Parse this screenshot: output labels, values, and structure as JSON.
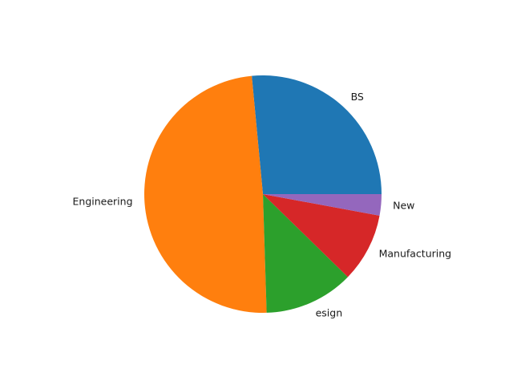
{
  "chart_data": {
    "type": "pie",
    "title": "",
    "start_angle_deg": 0,
    "direction": "counterclockwise",
    "slices": [
      {
        "label": "BS",
        "value": 26.5,
        "color": "#1f77b4"
      },
      {
        "label": "Engineering",
        "value": 49.0,
        "color": "#ff7f0e"
      },
      {
        "label": "esign",
        "value": 12.2,
        "color": "#2ca02c"
      },
      {
        "label": "Manufacturing",
        "value": 9.4,
        "color": "#d62728"
      },
      {
        "label": "New",
        "value": 2.9,
        "color": "#9467bd"
      }
    ]
  }
}
